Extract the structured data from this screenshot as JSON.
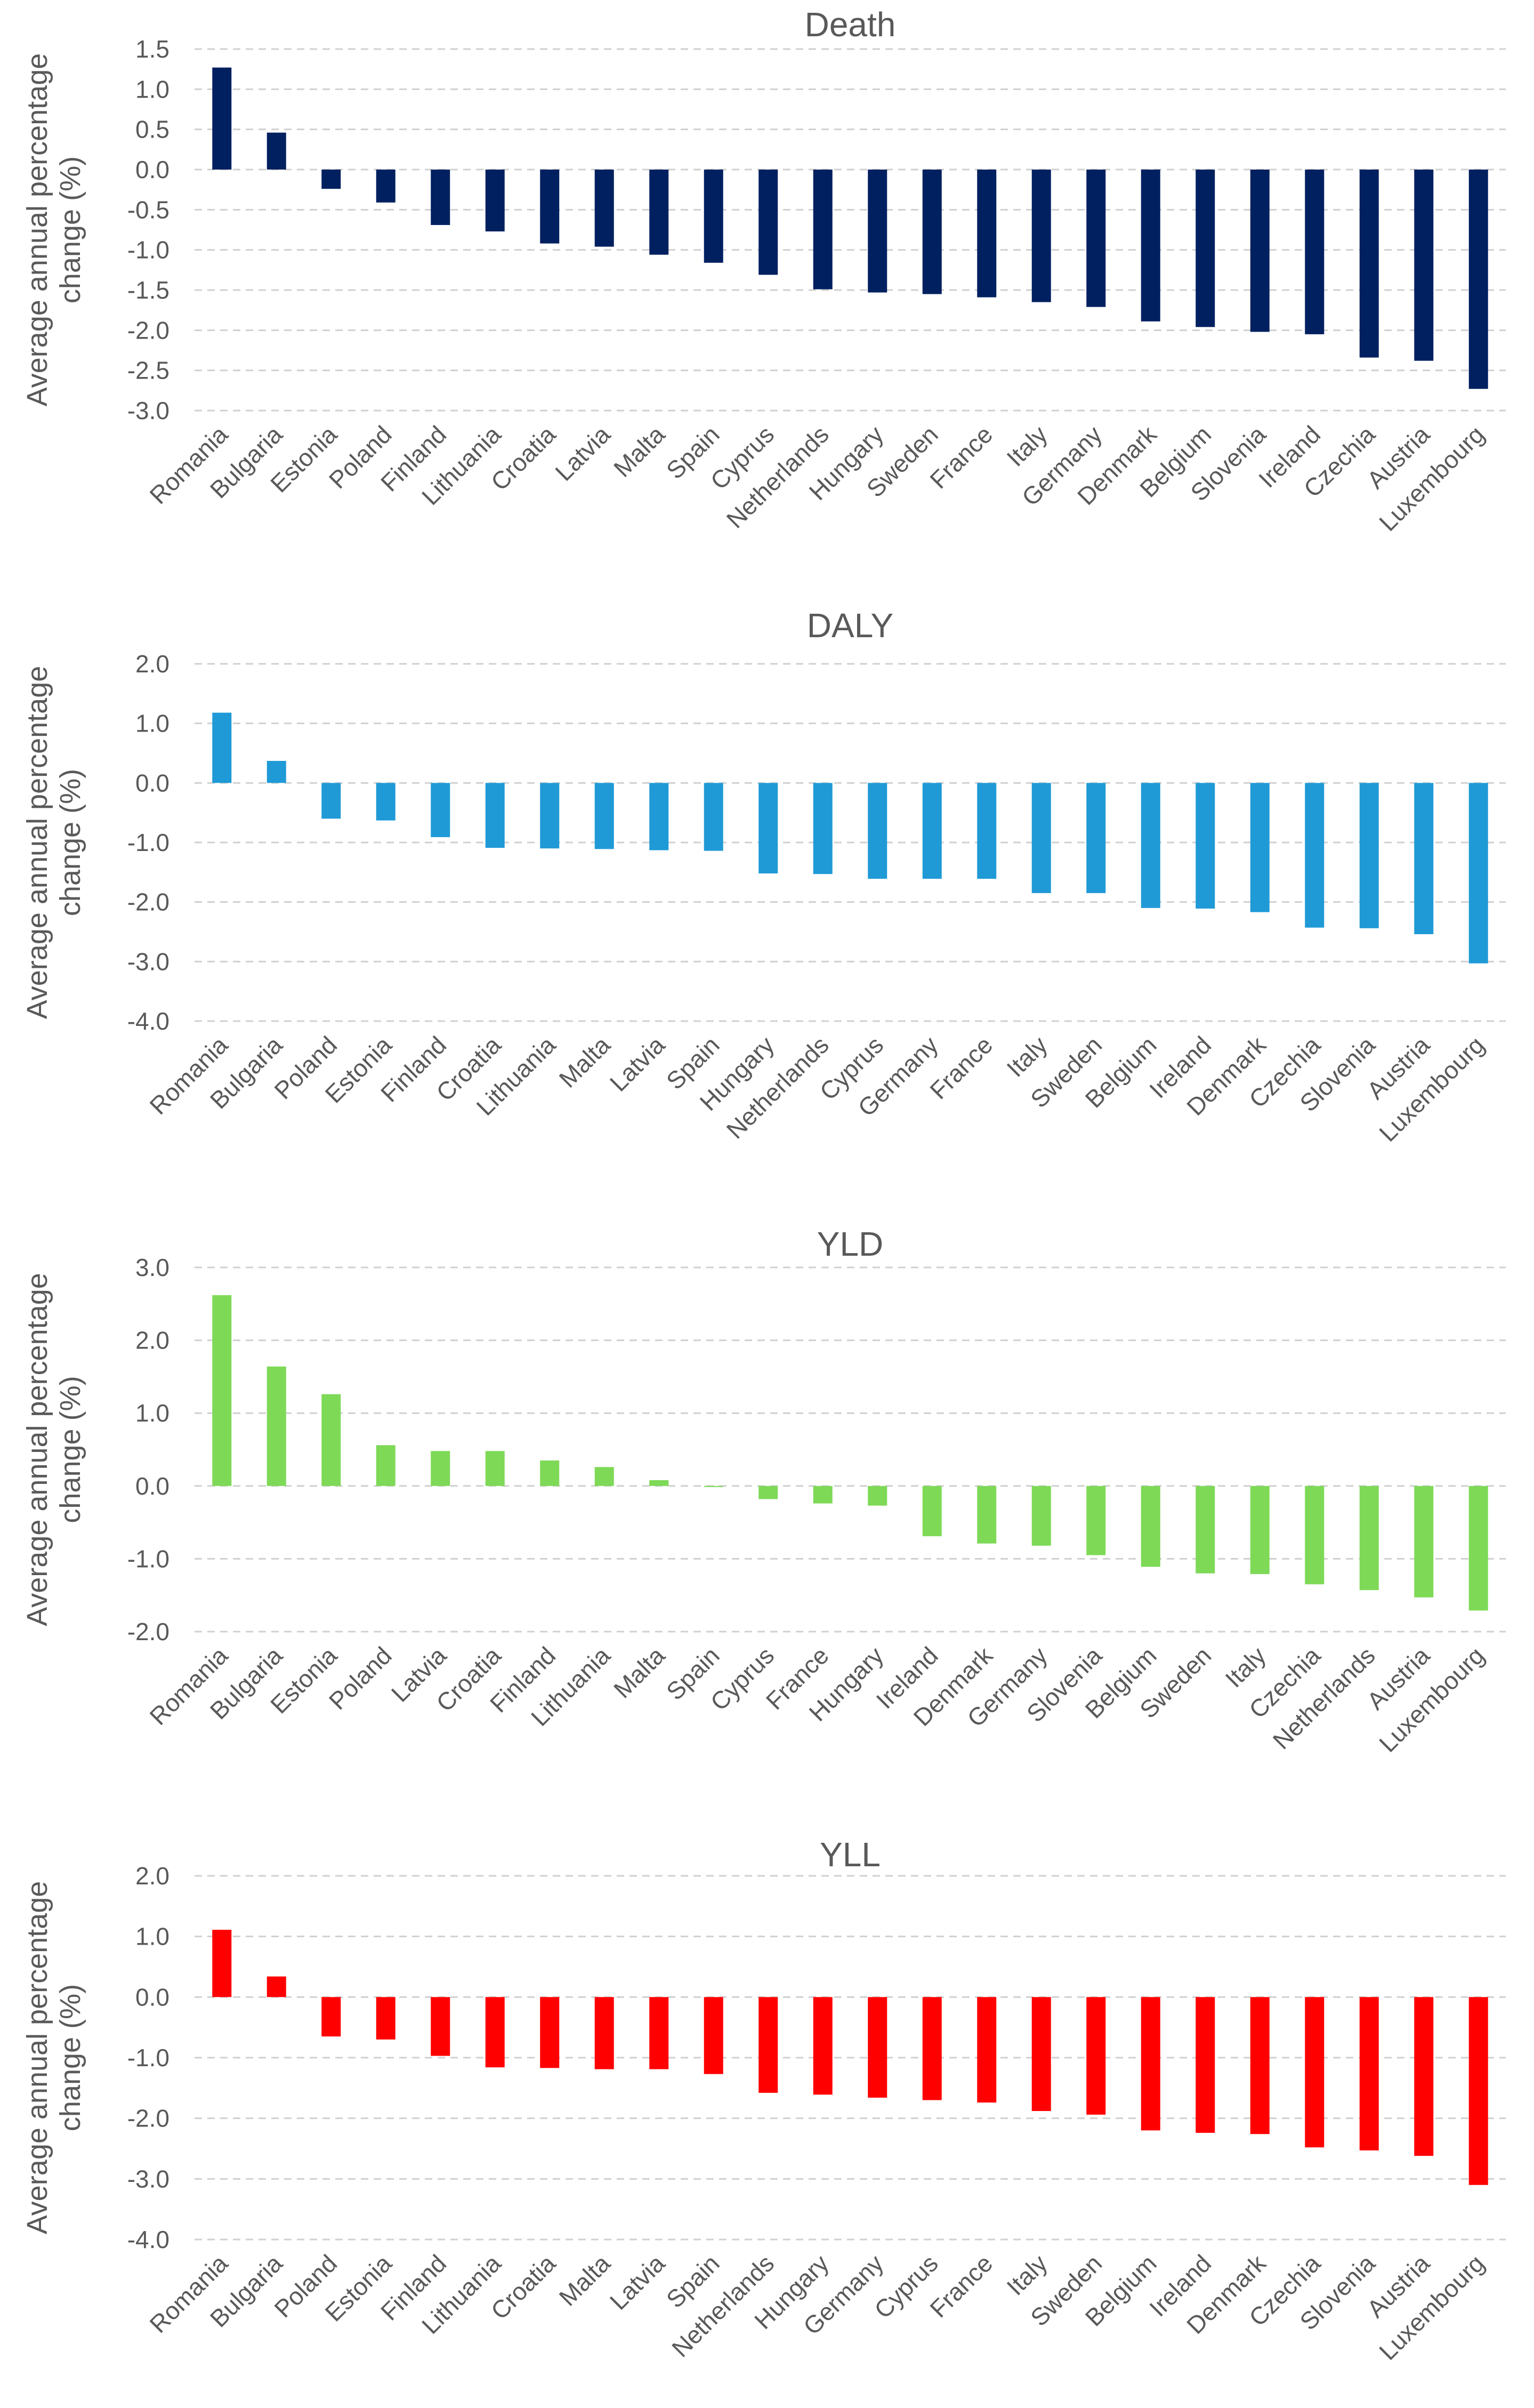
{
  "chart_data": [
    {
      "type": "bar",
      "title": "Death",
      "ylabel_lines": [
        "Average annual percentage",
        "change (%)"
      ],
      "ylim": [
        -3.0,
        1.5
      ],
      "yticks": [
        1.5,
        1.0,
        0.5,
        0.0,
        -0.5,
        -1.0,
        -1.5,
        -2.0,
        -2.5,
        -3.0
      ],
      "ytick_labels": [
        "1.5",
        "1.0",
        "0.5",
        "0.0",
        "-0.5",
        "-1.0",
        "-1.5",
        "-2.0",
        "-2.5",
        "-3.0"
      ],
      "grid": true,
      "color": "#002060",
      "categories": [
        "Romania",
        "Bulgaria",
        "Estonia",
        "Poland",
        "Finland",
        "Lithuania",
        "Croatia",
        "Latvia",
        "Malta",
        "Spain",
        "Cyprus",
        "Netherlands",
        "Hungary",
        "Sweden",
        "France",
        "Italy",
        "Germany",
        "Denmark",
        "Belgium",
        "Slovenia",
        "Ireland",
        "Czechia",
        "Austria",
        "Luxembourg"
      ],
      "values": [
        1.27,
        0.46,
        -0.24,
        -0.41,
        -0.69,
        -0.77,
        -0.92,
        -0.96,
        -1.06,
        -1.16,
        -1.31,
        -1.49,
        -1.53,
        -1.55,
        -1.59,
        -1.65,
        -1.71,
        -1.89,
        -1.96,
        -2.02,
        -2.05,
        -2.34,
        -2.38,
        -2.73
      ]
    },
    {
      "type": "bar",
      "title": "DALY",
      "ylabel_lines": [
        "Average annual percentage",
        "change (%)"
      ],
      "ylim": [
        -4.0,
        2.0
      ],
      "yticks": [
        2.0,
        1.0,
        0.0,
        -1.0,
        -2.0,
        -3.0,
        -4.0
      ],
      "ytick_labels": [
        "2.0",
        "1.0",
        "0.0",
        "-1.0",
        "-2.0",
        "-3.0",
        "-4.0"
      ],
      "grid": true,
      "color": "#1f9ad6",
      "categories": [
        "Romania",
        "Bulgaria",
        "Poland",
        "Estonia",
        "Finland",
        "Croatia",
        "Lithuania",
        "Malta",
        "Latvia",
        "Spain",
        "Hungary",
        "Netherlands",
        "Cyprus",
        "Germany",
        "France",
        "Italy",
        "Sweden",
        "Belgium",
        "Ireland",
        "Denmark",
        "Czechia",
        "Slovenia",
        "Austria",
        "Luxembourg"
      ],
      "values": [
        1.18,
        0.37,
        -0.6,
        -0.63,
        -0.91,
        -1.09,
        -1.1,
        -1.11,
        -1.13,
        -1.14,
        -1.52,
        -1.53,
        -1.61,
        -1.61,
        -1.61,
        -1.85,
        -1.85,
        -2.1,
        -2.11,
        -2.17,
        -2.43,
        -2.44,
        -2.54,
        -3.03
      ]
    },
    {
      "type": "bar",
      "title": "YLD",
      "ylabel_lines": [
        "Average annual percentage",
        "change (%)"
      ],
      "ylim": [
        -2.0,
        3.0
      ],
      "yticks": [
        3.0,
        2.0,
        1.0,
        0.0,
        -1.0,
        -2.0
      ],
      "ytick_labels": [
        "3.0",
        "2.0",
        "1.0",
        "0.0",
        "-1.0",
        "-2.0"
      ],
      "grid": true,
      "color": "#7ed957",
      "categories": [
        "Romania",
        "Bulgaria",
        "Estonia",
        "Poland",
        "Latvia",
        "Croatia",
        "Finland",
        "Lithuania",
        "Malta",
        "Spain",
        "Cyprus",
        "France",
        "Hungary",
        "Ireland",
        "Denmark",
        "Germany",
        "Slovenia",
        "Belgium",
        "Sweden",
        "Italy",
        "Czechia",
        "Netherlands",
        "Austria",
        "Luxembourg"
      ],
      "values": [
        2.62,
        1.64,
        1.26,
        0.56,
        0.48,
        0.48,
        0.35,
        0.26,
        0.08,
        -0.01,
        -0.18,
        -0.24,
        -0.27,
        -0.69,
        -0.79,
        -0.82,
        -0.95,
        -1.11,
        -1.2,
        -1.21,
        -1.35,
        -1.43,
        -1.53,
        -1.71
      ]
    },
    {
      "type": "bar",
      "title": "YLL",
      "ylabel_lines": [
        "Average annual percentage",
        "change (%)"
      ],
      "ylim": [
        -4.0,
        2.0
      ],
      "yticks": [
        2.0,
        1.0,
        0.0,
        -1.0,
        -2.0,
        -3.0,
        -4.0
      ],
      "ytick_labels": [
        "2.0",
        "1.0",
        "0.0",
        "-1.0",
        "-2.0",
        "-3.0",
        "-4.0"
      ],
      "grid": true,
      "color": "#ff0000",
      "categories": [
        "Romania",
        "Bulgaria",
        "Poland",
        "Estonia",
        "Finland",
        "Lithuania",
        "Croatia",
        "Malta",
        "Latvia",
        "Spain",
        "Netherlands",
        "Hungary",
        "Germany",
        "Cyprus",
        "France",
        "Italy",
        "Sweden",
        "Belgium",
        "Ireland",
        "Denmark",
        "Czechia",
        "Slovenia",
        "Austria",
        "Luxembourg"
      ],
      "values": [
        1.11,
        0.34,
        -0.65,
        -0.7,
        -0.97,
        -1.16,
        -1.17,
        -1.19,
        -1.19,
        -1.27,
        -1.58,
        -1.61,
        -1.66,
        -1.7,
        -1.74,
        -1.88,
        -1.94,
        -2.2,
        -2.24,
        -2.26,
        -2.48,
        -2.53,
        -2.62,
        -3.1
      ]
    }
  ]
}
